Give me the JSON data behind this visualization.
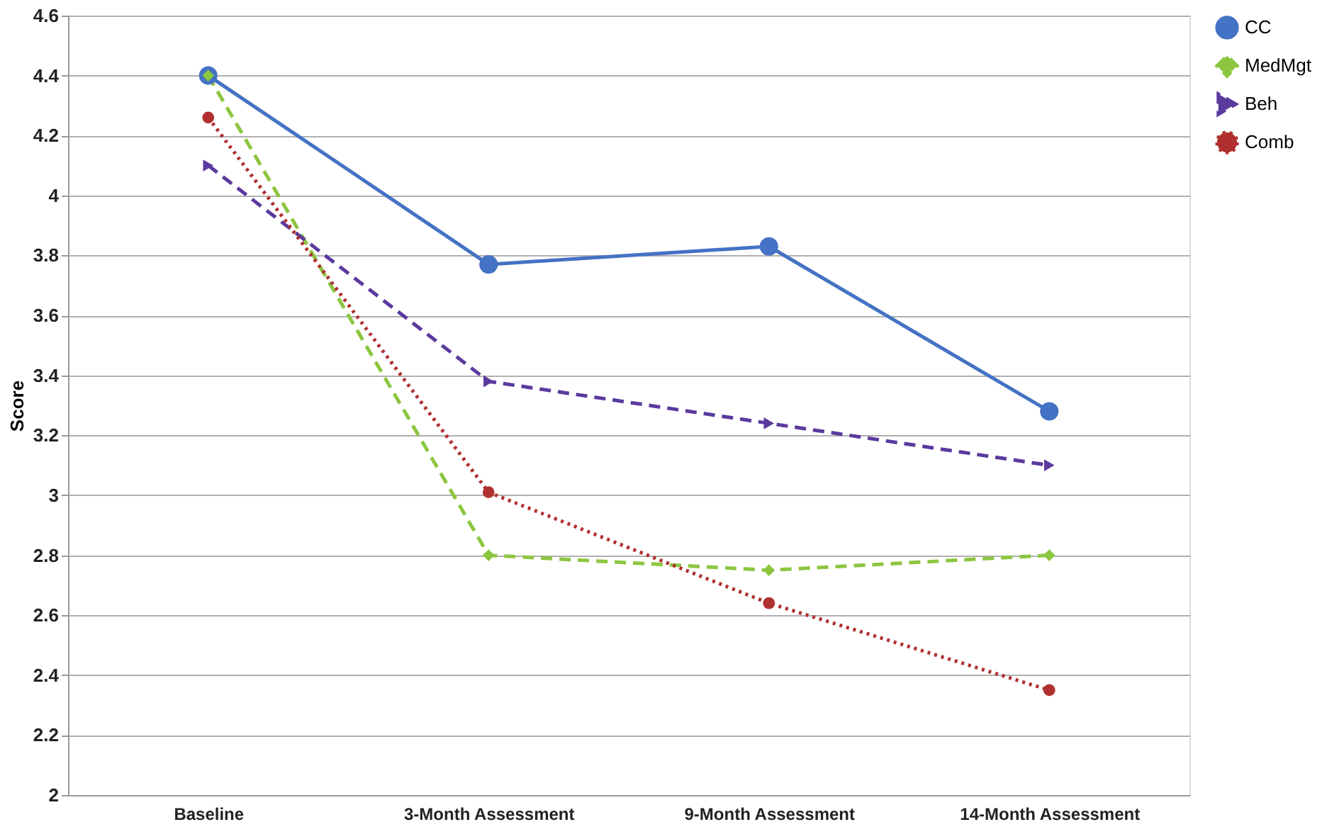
{
  "chart_data": {
    "type": "line",
    "ylabel": "Score",
    "categories": [
      "Baseline",
      "3-Month Assessment",
      "9-Month Assessment",
      "14-Month Assessment"
    ],
    "series": [
      {
        "name": "CC",
        "color": "#4472c4",
        "values": [
          4.4,
          3.77,
          3.83,
          3.28
        ],
        "marker": "circle",
        "line_style": "solid"
      },
      {
        "name": "MedMgt",
        "color": "#8cc63f",
        "values": [
          4.4,
          2.8,
          2.75,
          2.8
        ],
        "marker": "diamond",
        "line_style": "dashed"
      },
      {
        "name": "Beh",
        "color": "#5b3a9e",
        "values": [
          4.1,
          3.38,
          3.24,
          3.1
        ],
        "marker": "triangle",
        "line_style": "dashed"
      },
      {
        "name": "Comb",
        "color": "#b03030",
        "values": [
          4.26,
          3.01,
          2.64,
          2.35
        ],
        "marker": "circle",
        "line_style": "dotted"
      }
    ],
    "ylim": [
      2,
      4.6
    ],
    "yticks": [
      2,
      2.2,
      2.4,
      2.6,
      2.8,
      3,
      3.2,
      3.4,
      3.6,
      3.8,
      4,
      4.2,
      4.4,
      4.6
    ],
    "grid": "y",
    "legend": "top right"
  }
}
